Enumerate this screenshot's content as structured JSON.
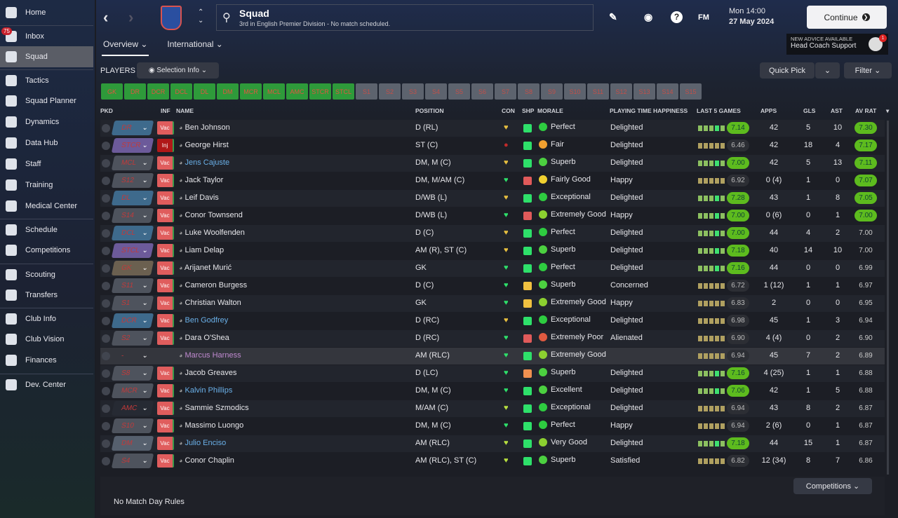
{
  "sidebar": {
    "items": [
      {
        "label": "Home",
        "icon": "home-icon"
      },
      {
        "label": "Inbox",
        "icon": "inbox-icon",
        "badge": "75"
      },
      {
        "label": "Squad",
        "icon": "shirt-icon",
        "active": true
      },
      {
        "label": "Tactics",
        "icon": "tactics-icon"
      },
      {
        "label": "Squad Planner",
        "icon": "clipboard-icon"
      },
      {
        "label": "Dynamics",
        "icon": "dynamics-icon"
      },
      {
        "label": "Data Hub",
        "icon": "data-hub-icon"
      },
      {
        "label": "Staff",
        "icon": "staff-icon"
      },
      {
        "label": "Training",
        "icon": "training-icon"
      },
      {
        "label": "Medical Center",
        "icon": "medical-icon"
      },
      {
        "label": "Schedule",
        "icon": "calendar-icon"
      },
      {
        "label": "Competitions",
        "icon": "trophy-icon"
      },
      {
        "label": "Scouting",
        "icon": "scouting-icon"
      },
      {
        "label": "Transfers",
        "icon": "transfers-icon"
      },
      {
        "label": "Club Info",
        "icon": "shield-icon"
      },
      {
        "label": "Club Vision",
        "icon": "briefcase-icon"
      },
      {
        "label": "Finances",
        "icon": "finances-icon"
      },
      {
        "label": "Dev. Center",
        "icon": "dev-center-icon"
      }
    ]
  },
  "header": {
    "title": "Squad",
    "subtitle": "3rd in English Premier Division - No match scheduled.",
    "tabs": [
      "Overview",
      "International"
    ],
    "fm": "FM",
    "day_time": "Mon 14:00",
    "date": "27 May 2024",
    "continue": "Continue",
    "advice_label": "NEW ADVICE AVAILABLE",
    "advice_title": "Head Coach Support",
    "advice_badge": "1"
  },
  "toolbar": {
    "players": "PLAYERS",
    "selection_info": "Selection Info",
    "quick_pick": "Quick Pick",
    "filter": "Filter"
  },
  "position_buttons": {
    "filled": [
      "GK",
      "DR",
      "DCR",
      "DCL",
      "DL",
      "DM",
      "MCR",
      "MCL",
      "AMC",
      "STCR",
      "STCL"
    ],
    "subs": [
      "S1",
      "S2",
      "S3",
      "S4",
      "S5",
      "S6",
      "S7",
      "S8",
      "S9",
      "S10",
      "S11",
      "S12",
      "S13",
      "S14",
      "S15"
    ]
  },
  "columns": [
    "PKD",
    "INF",
    "NAME",
    "POSITION",
    "CON",
    "SHP",
    "MORALE",
    "PLAYING TIME HAPPINESS",
    "LAST 5 GAMES",
    "APPS",
    "GLS",
    "AST",
    "AV RAT"
  ],
  "colors": {
    "accent_green": "#5dbb1e",
    "pkd_blue": "#3e6a8c",
    "pkd_purple": "#6c5a9a",
    "pkd_grey": "#4e535d",
    "pkd_brown": "#6b6050"
  },
  "rows": [
    {
      "pkd": "DR",
      "pc": "blue",
      "inf": "Vac",
      "name": "Ben Johnson",
      "position": "D (RL)",
      "con": "yellow",
      "shp": "green",
      "morale": "Perfect",
      "mc": "#2ecc40",
      "pth": "Delighted",
      "last5": "7.14",
      "l5g": true,
      "apps": "42",
      "gls": "5",
      "ast": "10",
      "av": "7.30",
      "avg": true
    },
    {
      "pkd": "STCR",
      "pc": "purple",
      "inf": "Inj",
      "name": "George Hirst",
      "position": "ST (C)",
      "con": "injured",
      "shp": "green",
      "morale": "Fair",
      "mc": "#f0a030",
      "pth": "Delighted",
      "last5": "6.46",
      "apps": "42",
      "gls": "18",
      "ast": "4",
      "av": "7.17",
      "avg": true
    },
    {
      "pkd": "MCL",
      "pc": "grey",
      "inf": "Vac",
      "name": "Jens Cajuste",
      "nc": "#6ab0e8",
      "position": "DM, M (C)",
      "con": "yellow",
      "shp": "green",
      "morale": "Superb",
      "mc": "#4cd040",
      "pth": "Delighted",
      "last5": "7.00",
      "l5g": true,
      "apps": "42",
      "gls": "5",
      "ast": "13",
      "av": "7.11",
      "avg": true
    },
    {
      "pkd": "S12",
      "pc": "grey",
      "inf": "Vac",
      "name": "Jack Taylor",
      "position": "DM, M/AM (C)",
      "con": "green",
      "shp": "red",
      "morale": "Fairly Good",
      "mc": "#f0d030",
      "pth": "Happy",
      "last5": "6.92",
      "apps": "0 (4)",
      "gls": "1",
      "ast": "0",
      "av": "7.07",
      "avg": true
    },
    {
      "pkd": "DL",
      "pc": "blue",
      "inf": "Vac",
      "name": "Leif Davis",
      "position": "D/WB (L)",
      "con": "yellow",
      "shp": "green",
      "morale": "Exceptional",
      "mc": "#2ecc40",
      "pth": "Delighted",
      "last5": "7.28",
      "l5g": true,
      "apps": "43",
      "gls": "1",
      "ast": "8",
      "av": "7.05",
      "avg": true
    },
    {
      "pkd": "S14",
      "pc": "grey",
      "inf": "Vac",
      "name": "Conor Townsend",
      "position": "D/WB (L)",
      "con": "green",
      "shp": "red",
      "morale": "Extremely Good",
      "mc": "#8cd030",
      "pth": "Happy",
      "last5": "7.00",
      "l5g": true,
      "apps": "0 (6)",
      "gls": "0",
      "ast": "1",
      "av": "7.00",
      "avg": true
    },
    {
      "pkd": "DCL",
      "pc": "blue",
      "inf": "Vac",
      "name": "Luke Woolfenden",
      "position": "D (C)",
      "con": "yellow",
      "shp": "green",
      "morale": "Perfect",
      "mc": "#2ecc40",
      "pth": "Delighted",
      "last5": "7.00",
      "l5g": true,
      "apps": "44",
      "gls": "4",
      "ast": "2",
      "av": "7.00"
    },
    {
      "pkd": "STCL",
      "pc": "purple",
      "inf": "Vac",
      "name": "Liam Delap",
      "position": "AM (R), ST (C)",
      "con": "yellow",
      "shp": "green",
      "morale": "Superb",
      "mc": "#4cd040",
      "pth": "Delighted",
      "last5": "7.18",
      "l5g": true,
      "apps": "40",
      "gls": "14",
      "ast": "10",
      "av": "7.00"
    },
    {
      "pkd": "GK",
      "pc": "brown",
      "inf": "Vac",
      "name": "Arijanet Murić",
      "position": "GK",
      "con": "green",
      "shp": "green",
      "morale": "Perfect",
      "mc": "#2ecc40",
      "pth": "Delighted",
      "last5": "7.16",
      "l5g": true,
      "apps": "44",
      "gls": "0",
      "ast": "0",
      "av": "6.99"
    },
    {
      "pkd": "S11",
      "pc": "grey",
      "inf": "Vac",
      "name": "Cameron Burgess",
      "position": "D (C)",
      "con": "green",
      "shp": "yellow",
      "morale": "Superb",
      "mc": "#4cd040",
      "pth": "Concerned",
      "last5": "6.72",
      "apps": "1 (12)",
      "gls": "1",
      "ast": "1",
      "av": "6.97"
    },
    {
      "pkd": "S1",
      "pc": "grey",
      "inf": "Vac",
      "name": "Christian Walton",
      "position": "GK",
      "con": "green",
      "shp": "yellow",
      "morale": "Extremely Good",
      "mc": "#8cd030",
      "pth": "Happy",
      "last5": "6.83",
      "apps": "2",
      "gls": "0",
      "ast": "0",
      "av": "6.95"
    },
    {
      "pkd": "DCR",
      "pc": "blue",
      "inf": "Vac",
      "name": "Ben Godfrey",
      "nc": "#6ab0e8",
      "position": "D (RC)",
      "con": "yellow",
      "shp": "green",
      "morale": "Exceptional",
      "mc": "#2ecc40",
      "pth": "Delighted",
      "last5": "6.98",
      "apps": "45",
      "gls": "1",
      "ast": "3",
      "av": "6.94"
    },
    {
      "pkd": "S2",
      "pc": "grey",
      "inf": "Vac",
      "name": "Dara O'Shea",
      "position": "D (RC)",
      "con": "green",
      "shp": "red",
      "morale": "Extremely Poor",
      "mc": "#e05a40",
      "pth": "Alienated",
      "last5": "6.90",
      "apps": "4 (4)",
      "gls": "0",
      "ast": "2",
      "av": "6.90"
    },
    {
      "pkd": "-",
      "pc": "none",
      "inf": "",
      "name": "Marcus Harness",
      "nc": "#c08ad0",
      "position": "AM (RLC)",
      "con": "green",
      "shp": "green",
      "morale": "Extremely Good",
      "mc": "#8cd030",
      "pth": "",
      "last5": "6.94",
      "apps": "45",
      "gls": "7",
      "ast": "2",
      "av": "6.89",
      "hl": true
    },
    {
      "pkd": "S8",
      "pc": "grey",
      "inf": "Vac",
      "name": "Jacob Greaves",
      "position": "D (LC)",
      "con": "green",
      "shp": "orange",
      "morale": "Superb",
      "mc": "#4cd040",
      "pth": "Delighted",
      "last5": "7.16",
      "l5g": true,
      "apps": "4 (25)",
      "gls": "1",
      "ast": "1",
      "av": "6.88"
    },
    {
      "pkd": "MCR",
      "pc": "grey",
      "inf": "Vac",
      "name": "Kalvin Phillips",
      "nc": "#6ab0e8",
      "position": "DM, M (C)",
      "con": "green",
      "shp": "green",
      "morale": "Excellent",
      "mc": "#4cd040",
      "pth": "Delighted",
      "last5": "7.06",
      "l5g": true,
      "apps": "42",
      "gls": "1",
      "ast": "5",
      "av": "6.88"
    },
    {
      "pkd": "AMC",
      "pc": "dark",
      "inf": "Vac",
      "name": "Sammie Szmodics",
      "position": "M/AM (C)",
      "con": "lime",
      "shp": "green",
      "morale": "Exceptional",
      "mc": "#2ecc40",
      "pth": "Delighted",
      "last5": "6.94",
      "apps": "43",
      "gls": "8",
      "ast": "2",
      "av": "6.87"
    },
    {
      "pkd": "S10",
      "pc": "grey",
      "inf": "Vac",
      "name": "Massimo Luongo",
      "position": "DM, M (C)",
      "con": "green",
      "shp": "green",
      "morale": "Perfect",
      "mc": "#2ecc40",
      "pth": "Happy",
      "last5": "6.94",
      "apps": "2 (6)",
      "gls": "0",
      "ast": "1",
      "av": "6.87"
    },
    {
      "pkd": "DM",
      "pc": "slate",
      "inf": "Vac",
      "name": "Julio Enciso",
      "nc": "#6ab0e8",
      "position": "AM (RLC)",
      "con": "lime",
      "shp": "green",
      "morale": "Very Good",
      "mc": "#8cd030",
      "pth": "Delighted",
      "last5": "7.18",
      "l5g": true,
      "apps": "44",
      "gls": "15",
      "ast": "1",
      "av": "6.87"
    },
    {
      "pkd": "S4",
      "pc": "grey",
      "inf": "Vac",
      "name": "Conor Chaplin",
      "position": "AM (RLC), ST (C)",
      "con": "lime",
      "shp": "green",
      "morale": "Superb",
      "mc": "#4cd040",
      "pth": "Satisfied",
      "last5": "6.82",
      "apps": "12 (34)",
      "gls": "8",
      "ast": "7",
      "av": "6.86"
    }
  ],
  "footer": {
    "competitions": "Competitions",
    "match_day_rules": "No Match Day Rules"
  }
}
